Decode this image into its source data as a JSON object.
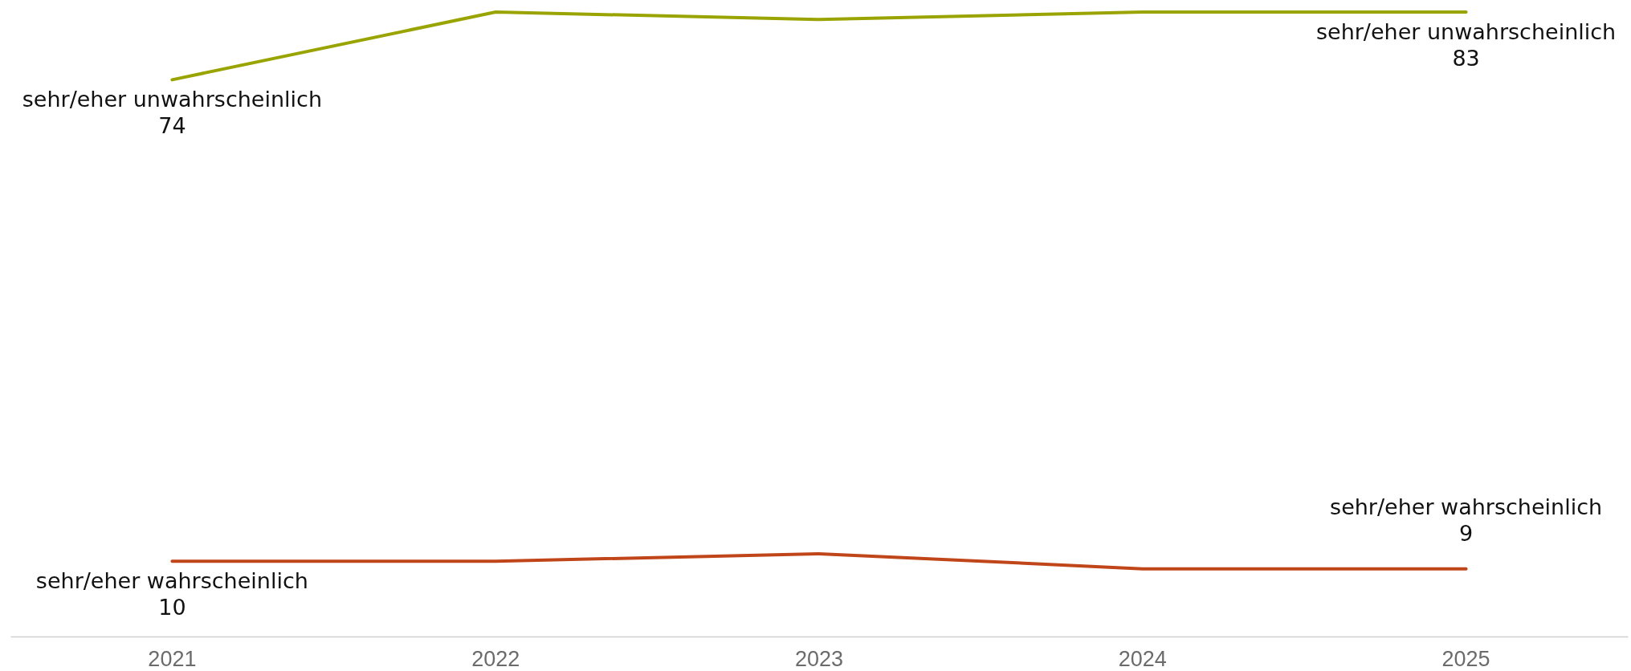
{
  "chart_data": {
    "type": "line",
    "categories": [
      "2021",
      "2022",
      "2023",
      "2024",
      "2025"
    ],
    "legend": false,
    "marker": "none",
    "line_style": "solid",
    "tick_labels": "x",
    "series": [
      {
        "name": "sehr/eher unwahrscheinlich",
        "color": "#9aa400",
        "values": [
          74,
          83,
          82,
          83,
          83
        ],
        "value_labels": [
          "74",
          null,
          null,
          null,
          "83"
        ]
      },
      {
        "name": "sehr/eher wahrscheinlich",
        "color": "#c0461a",
        "values": [
          10,
          10,
          11,
          9,
          9
        ],
        "value_labels": [
          "10",
          null,
          null,
          null,
          "9"
        ]
      }
    ]
  }
}
